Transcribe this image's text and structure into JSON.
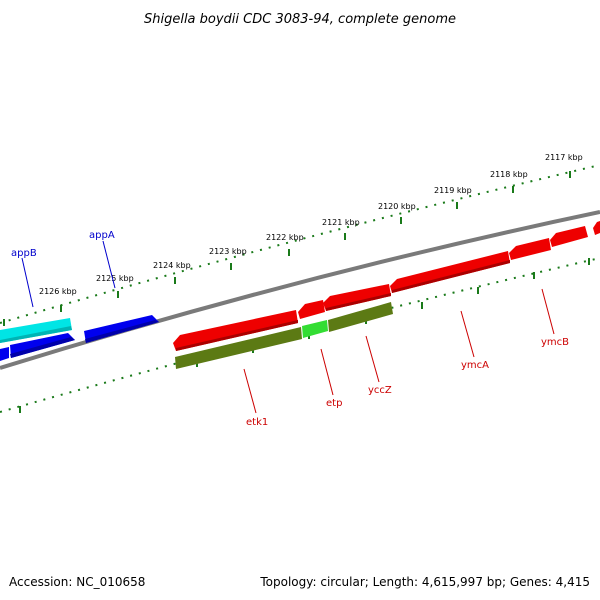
{
  "title": "Shigella boydii CDC 3083-94, complete genome",
  "footer": {
    "accession": "Accession: NC_010658",
    "summary": "Topology: circular; Length: 4,615,997 bp; Genes: 4,415"
  },
  "colors": {
    "backbone": "#7a7a7a",
    "tick": "#1a7a1a",
    "forward_label": "#0000cc",
    "reverse_label": "#cc0000",
    "gene_blue": "#0000ee",
    "gene_cyan": "#00e5e5",
    "gene_red": "#ee0000",
    "gene_olive": "#5c7a14",
    "gene_green": "#33dd33"
  },
  "kbp_labels": [
    "2117 kbp",
    "2118 kbp",
    "2119 kbp",
    "2120 kbp",
    "2121 kbp",
    "2122 kbp",
    "2123 kbp",
    "2124 kbp",
    "2125 kbp",
    "2126 kbp"
  ],
  "genes": {
    "appB": "appB",
    "appA": "appA",
    "etk1": "etk1",
    "etp": "etp",
    "yccZ": "yccZ",
    "ymcA": "ymcA",
    "ymcB": "ymcB"
  }
}
